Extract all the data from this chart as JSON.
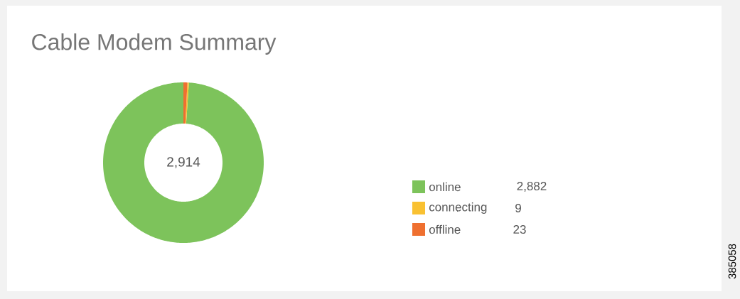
{
  "chart_data": {
    "type": "donut",
    "title": "Cable Modem Summary",
    "categories": [
      "online",
      "connecting",
      "offline"
    ],
    "values": [
      2882,
      9,
      23
    ],
    "colors": [
      "#7dc35b",
      "#f9c132",
      "#ef7030"
    ],
    "value_labels": [
      "2,882",
      "9",
      "23"
    ],
    "legend": "right",
    "annotations": [
      "2,914",
      "385058"
    ]
  }
}
